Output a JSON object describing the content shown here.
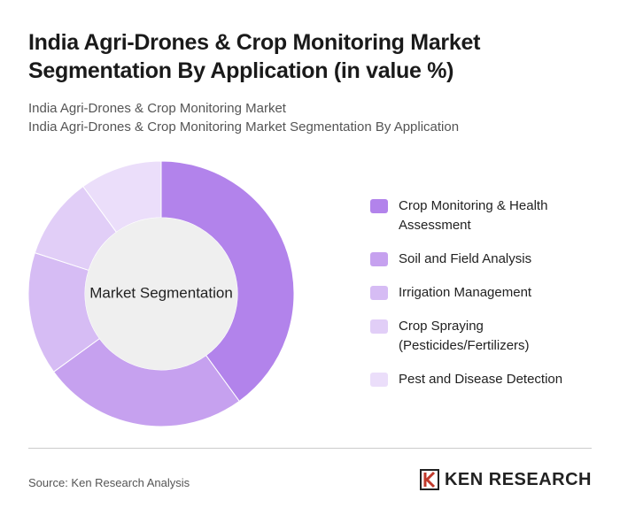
{
  "chart_data": {
    "type": "donut",
    "title": "India Agri-Drones & Crop Monitoring Market Segmentation By Application (in value %)",
    "subtitle": [
      "India Agri-Drones & Crop Monitoring Market",
      "India Agri-Drones & Crop Monitoring Market Segmentation By Application"
    ],
    "center_label": "Market Segmentation",
    "categories": [
      "Crop Monitoring & Health Assessment",
      "Soil and Field Analysis",
      "Irrigation Management",
      "Crop Spraying (Pesticides/Fertilizers)",
      "Pest and Disease Detection"
    ],
    "values": [
      40,
      25,
      15,
      10,
      10
    ],
    "colors": [
      "#b283eb",
      "#c6a1ef",
      "#d6bcf4",
      "#e1cef7",
      "#ebdefa"
    ]
  },
  "source": "Source: Ken Research Analysis",
  "logo": "KEN RESEARCH"
}
